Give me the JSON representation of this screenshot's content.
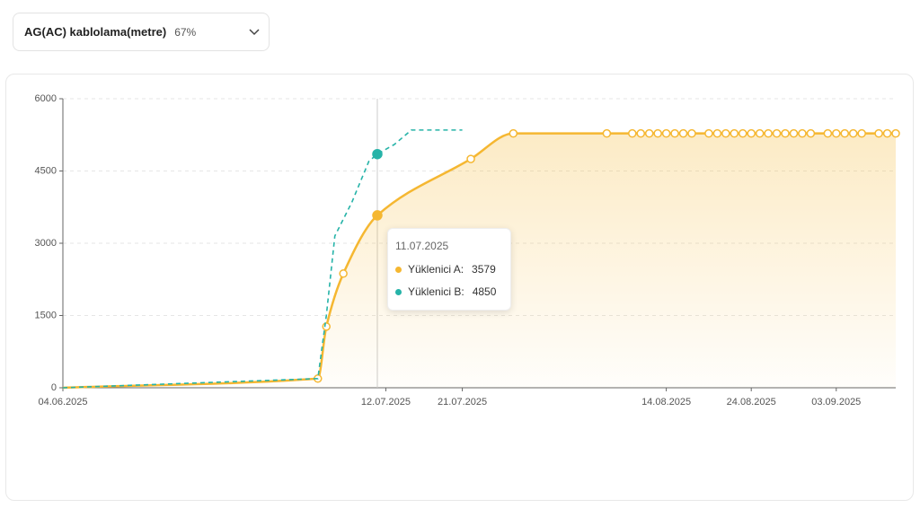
{
  "dropdown": {
    "label": "AG(AC) kablolama(metre)",
    "percent": "67%"
  },
  "chart_data": {
    "type": "line",
    "xlim": [
      "04.06.2025",
      "10.09.2025"
    ],
    "xticks": [
      "04.06.2025",
      "12.07.2025",
      "21.07.2025",
      "14.08.2025",
      "24.08.2025",
      "03.09.2025"
    ],
    "ylim": [
      0,
      6000
    ],
    "yticks": [
      0,
      1500,
      3000,
      4500,
      6000
    ],
    "grid": true,
    "series": [
      {
        "color": "#f5b731",
        "area": true,
        "smooth": true,
        "x": [
          "04.06.2025",
          "04.07.2025",
          "05.07.2025",
          "07.07.2025",
          "11.07.2025",
          "22.07.2025",
          "27.07.2025",
          "07.08.2025",
          "10.08.2025",
          "11.08.2025",
          "12.08.2025",
          "13.08.2025",
          "14.08.2025",
          "15.08.2025",
          "16.08.2025",
          "17.08.2025",
          "19.08.2025",
          "20.08.2025",
          "21.08.2025",
          "22.08.2025",
          "23.08.2025",
          "24.08.2025",
          "25.08.2025",
          "26.08.2025",
          "27.08.2025",
          "28.08.2025",
          "29.08.2025",
          "30.08.2025",
          "31.08.2025",
          "02.09.2025",
          "03.09.2025",
          "04.09.2025",
          "05.09.2025",
          "06.09.2025",
          "08.09.2025",
          "09.09.2025",
          "10.09.2025"
        ],
        "values": [
          0,
          190,
          1270,
          2370,
          3579,
          4750,
          5280,
          5280,
          5280,
          5280,
          5280,
          5280,
          5280,
          5280,
          5280,
          5280,
          5280,
          5280,
          5280,
          5280,
          5280,
          5280,
          5280,
          5280,
          5280,
          5280,
          5280,
          5280,
          5280,
          5280,
          5280,
          5280,
          5280,
          5280,
          5280,
          5280,
          5280
        ]
      },
      {
        "color": "#26b3a8",
        "area": false,
        "smooth": false,
        "dashed": true,
        "x": [
          "04.06.2025",
          "04.07.2025",
          "05.07.2025",
          "06.07.2025",
          "08.07.2025",
          "10.07.2025",
          "11.07.2025",
          "13.07.2025",
          "15.07.2025",
          "21.07.2025"
        ],
        "values": [
          0,
          190,
          1500,
          3150,
          3850,
          4700,
          4850,
          5050,
          5350,
          5350
        ]
      }
    ],
    "tooltip": {
      "title": "11.07.2025",
      "items": [
        {
          "label": "Yüklenici A:",
          "value": 3579
        },
        {
          "label": "Yüklenici B:",
          "value": 4850
        }
      ]
    }
  }
}
